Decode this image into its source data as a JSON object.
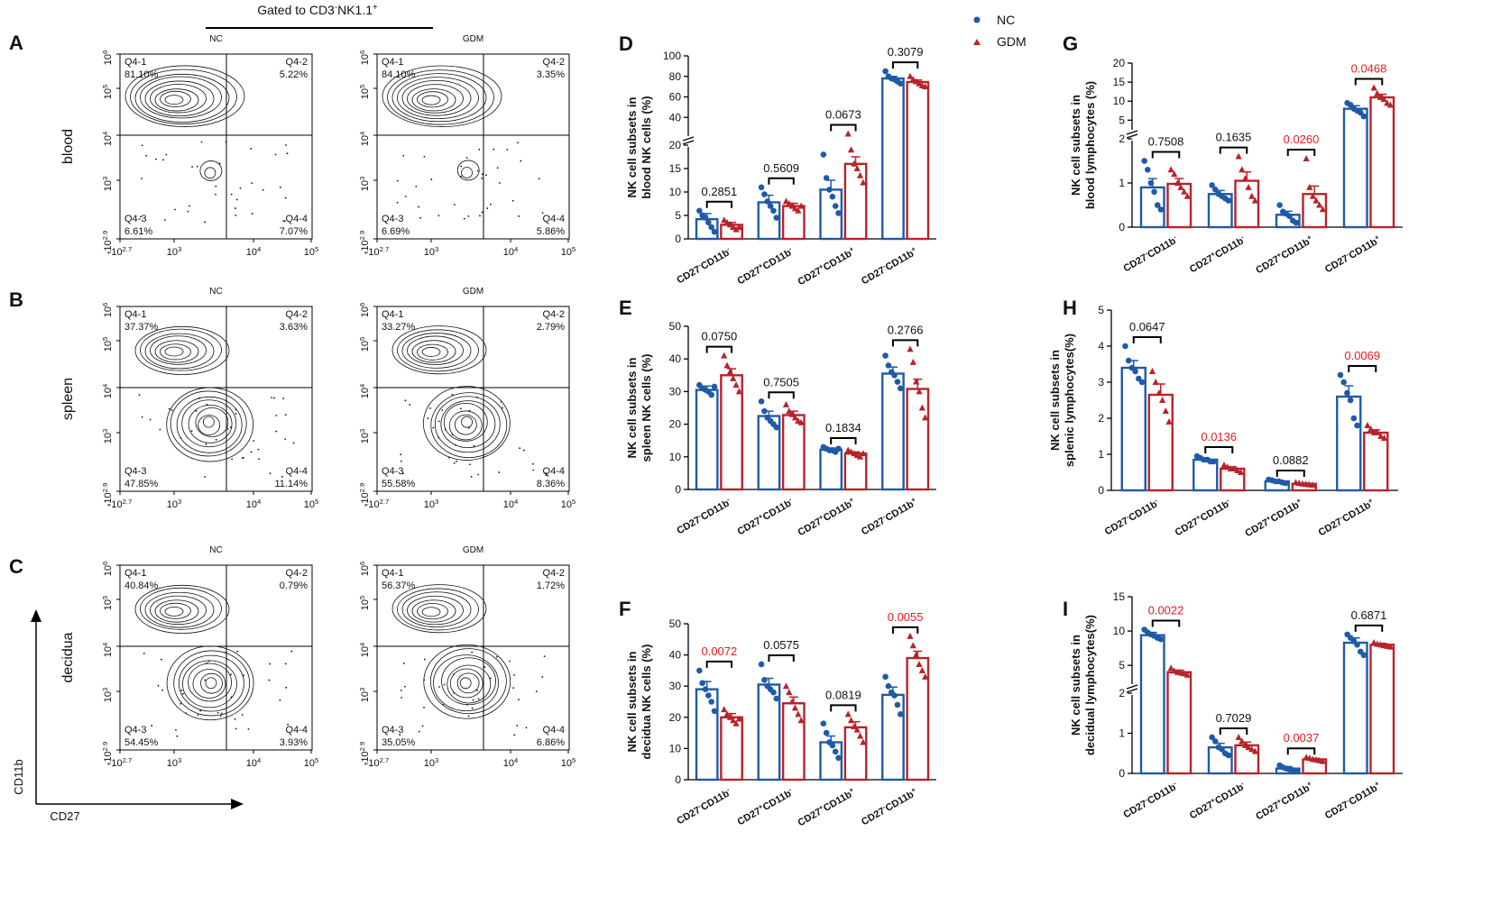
{
  "header": {
    "gate_label": "Gated to CD3",
    "gate_sup1": "-",
    "gate_label2": "NK1.1",
    "gate_sup2": "+"
  },
  "legend": {
    "nc": "NC",
    "gdm": "GDM"
  },
  "colors": {
    "nc": "#1f5aa8",
    "gdm": "#b8232a",
    "sig": "#e8191c",
    "axis": "#000000"
  },
  "axes": {
    "xlabel": "CD27",
    "ylabel": "CD11b"
  },
  "flow": {
    "x_ticks": [
      "-10",
      "10",
      "10",
      "10"
    ],
    "x_tick_exps": [
      "2.7",
      "3",
      "4",
      "5"
    ],
    "y_ticks": [
      "-10",
      "10",
      "10",
      "10",
      "10"
    ],
    "y_tick_exps": [
      "2.9",
      "3",
      "4",
      "5",
      "6"
    ],
    "rows": [
      {
        "letter": "A",
        "tissue": "blood",
        "panels": [
          {
            "group": "NC",
            "q1": "Q4-1",
            "q1v": "81.10%",
            "q2": "Q4-2",
            "q2v": "5.22%",
            "q3": "Q4-3",
            "q3v": "6.61%",
            "q4": "Q4-4",
            "q4v": "7.07%"
          },
          {
            "group": "GDM",
            "q1": "Q4-1",
            "q1v": "84.10%",
            "q2": "Q4-2",
            "q2v": "3.35%",
            "q3": "Q4-3",
            "q3v": "6.69%",
            "q4": "Q4-4",
            "q4v": "5.86%"
          }
        ]
      },
      {
        "letter": "B",
        "tissue": "spleen",
        "panels": [
          {
            "group": "NC",
            "q1": "Q4-1",
            "q1v": "37.37%",
            "q2": "Q4-2",
            "q2v": "3.63%",
            "q3": "Q4-3",
            "q3v": "47.85%",
            "q4": "Q4-4",
            "q4v": "11.14%"
          },
          {
            "group": "GDM",
            "q1": "Q4-1",
            "q1v": "33.27%",
            "q2": "Q4-2",
            "q2v": "2.79%",
            "q3": "Q4-3",
            "q3v": "55.58%",
            "q4": "Q4-4",
            "q4v": "8.36%"
          }
        ]
      },
      {
        "letter": "C",
        "tissue": "decidua",
        "panels": [
          {
            "group": "NC",
            "q1": "Q4-1",
            "q1v": "40.84%",
            "q2": "Q4-2",
            "q2v": "0.79%",
            "q3": "Q4-3",
            "q3v": "54.45%",
            "q4": "Q4-4",
            "q4v": "3.93%"
          },
          {
            "group": "GDM",
            "q1": "Q4-1",
            "q1v": "56.37%",
            "q2": "Q4-2",
            "q2v": "1.72%",
            "q3": "Q4-3",
            "q3v": "35.05%",
            "q4": "Q4-4",
            "q4v": "6.86%"
          }
        ]
      }
    ]
  },
  "chart_data": [
    {
      "id": "D",
      "type": "bar",
      "ylabel": [
        "NK cell subsets in",
        "blood NK cells (%)"
      ],
      "segments": [
        {
          "range": [
            0,
            20
          ],
          "ticks": [
            0,
            5,
            10,
            15,
            20
          ]
        },
        {
          "range": [
            20,
            100
          ],
          "ticks": [
            20,
            40,
            60,
            80,
            100
          ]
        }
      ],
      "groups": [
        {
          "label": "CD27",
          "s1": "-",
          "mid": "CD11b",
          "s2": "-",
          "nc": 4.2,
          "nc_err": 1.2,
          "gdm": 3.0,
          "gdm_err": 0.5,
          "nc_pts": [
            6.0,
            5.0,
            4.5,
            3.5,
            2.5,
            1.5
          ],
          "gdm_pts": [
            4.0,
            3.5,
            3.0,
            2.5,
            2.0,
            2.5
          ],
          "p": "0.2851",
          "sig": false
        },
        {
          "label": "CD27",
          "s1": "+",
          "mid": "CD11b",
          "s2": "-",
          "nc": 7.8,
          "nc_err": 1.5,
          "gdm": 7.0,
          "gdm_err": 0.6,
          "nc_pts": [
            11.0,
            9.5,
            8.0,
            7.0,
            6.0,
            4.5
          ],
          "gdm_pts": [
            8.0,
            7.5,
            7.0,
            6.5,
            6.0,
            7.0
          ],
          "p": "0.5609",
          "sig": false
        },
        {
          "label": "CD27",
          "s1": "+",
          "mid": "CD11b",
          "s2": "+",
          "nc": 10.5,
          "nc_err": 2.0,
          "gdm": 16.0,
          "gdm_err": 1.5,
          "nc_pts": [
            18.0,
            13.0,
            10.5,
            9.0,
            7.0,
            5.5
          ],
          "gdm_pts": [
            24.0,
            19.0,
            16.0,
            15.0,
            13.5,
            12.0
          ],
          "p": "0.0673",
          "sig": false
        },
        {
          "label": "CD27",
          "s1": "-",
          "mid": "CD11b",
          "s2": "+",
          "nc": 78.0,
          "nc_err": 2.0,
          "gdm": 74.5,
          "gdm_err": 2.0,
          "nc_pts": [
            85.0,
            80.0,
            78.0,
            77.0,
            75.0,
            73.0
          ],
          "gdm_pts": [
            80.0,
            77.0,
            75.0,
            73.0,
            71.0,
            70.0
          ],
          "p": "0.3079",
          "sig": false
        }
      ]
    },
    {
      "id": "E",
      "type": "bar",
      "ylabel": [
        "NK cell subsets in",
        "spleen NK cells (%)"
      ],
      "segments": [
        {
          "range": [
            0,
            50
          ],
          "ticks": [
            0,
            10,
            20,
            30,
            40,
            50
          ]
        }
      ],
      "groups": [
        {
          "label": "CD27",
          "s1": "-",
          "mid": "CD11b",
          "s2": "-",
          "nc": 30.5,
          "nc_err": 1.2,
          "gdm": 35.0,
          "gdm_err": 2.0,
          "nc_pts": [
            32.0,
            31.0,
            30.5,
            30.0,
            29.0,
            31.5
          ],
          "gdm_pts": [
            41.0,
            38.0,
            36.0,
            34.0,
            32.0,
            30.0
          ],
          "p": "0.0750",
          "sig": false
        },
        {
          "label": "CD27",
          "s1": "+",
          "mid": "CD11b",
          "s2": "-",
          "nc": 22.5,
          "nc_err": 1.5,
          "gdm": 22.8,
          "gdm_err": 1.2,
          "nc_pts": [
            27.0,
            24.0,
            22.0,
            21.0,
            20.0,
            19.0
          ],
          "gdm_pts": [
            26.0,
            24.0,
            23.0,
            22.0,
            21.0,
            20.5
          ],
          "p": "0.7505",
          "sig": false
        },
        {
          "label": "CD27",
          "s1": "+",
          "mid": "CD11b",
          "s2": "+",
          "nc": 12.2,
          "nc_err": 0.5,
          "gdm": 11.0,
          "gdm_err": 0.5,
          "nc_pts": [
            13.0,
            12.5,
            12.0,
            12.0,
            11.5,
            12.5
          ],
          "gdm_pts": [
            12.0,
            11.5,
            11.0,
            10.5,
            10.0,
            11.0
          ],
          "p": "0.1834",
          "sig": false
        },
        {
          "label": "CD27",
          "s1": "-",
          "mid": "CD11b",
          "s2": "+",
          "nc": 35.5,
          "nc_err": 2.0,
          "gdm": 30.8,
          "gdm_err": 3.0,
          "nc_pts": [
            41.0,
            38.0,
            36.0,
            35.0,
            33.0,
            31.0
          ],
          "gdm_pts": [
            43.0,
            39.0,
            33.0,
            30.0,
            25.0,
            22.0
          ],
          "p": "0.2766",
          "sig": false
        }
      ]
    },
    {
      "id": "F",
      "type": "bar",
      "ylabel": [
        "NK cell subsets in",
        "decidua NK cells (%)"
      ],
      "segments": [
        {
          "range": [
            0,
            50
          ],
          "ticks": [
            0,
            10,
            20,
            30,
            40,
            50
          ]
        }
      ],
      "groups": [
        {
          "label": "CD27",
          "s1": "-",
          "mid": "CD11b",
          "s2": "-",
          "nc": 29.0,
          "nc_err": 2.5,
          "gdm": 20.0,
          "gdm_err": 1.2,
          "nc_pts": [
            35.0,
            31.0,
            29.0,
            27.0,
            25.0,
            22.0
          ],
          "gdm_pts": [
            22.5,
            21.0,
            20.0,
            19.0,
            18.0,
            19.5
          ],
          "p": "0.0072",
          "sig": true
        },
        {
          "label": "CD27",
          "s1": "+",
          "mid": "CD11b",
          "s2": "-",
          "nc": 30.5,
          "nc_err": 2.0,
          "gdm": 24.5,
          "gdm_err": 2.0,
          "nc_pts": [
            37.0,
            32.0,
            30.0,
            29.0,
            28.0,
            26.0
          ],
          "gdm_pts": [
            30.0,
            28.0,
            25.0,
            23.0,
            21.0,
            19.0
          ],
          "p": "0.0575",
          "sig": false
        },
        {
          "label": "CD27",
          "s1": "+",
          "mid": "CD11b",
          "s2": "+",
          "nc": 12.0,
          "nc_err": 2.0,
          "gdm": 16.8,
          "gdm_err": 1.8,
          "nc_pts": [
            18.0,
            15.0,
            12.0,
            11.0,
            9.0,
            7.0
          ],
          "gdm_pts": [
            21.0,
            19.0,
            17.0,
            16.0,
            14.0,
            12.0
          ],
          "p": "0.0819",
          "sig": false
        },
        {
          "label": "CD27",
          "s1": "-",
          "mid": "CD11b",
          "s2": "+",
          "nc": 27.2,
          "nc_err": 2.5,
          "gdm": 39.0,
          "gdm_err": 2.2,
          "nc_pts": [
            33.0,
            30.0,
            28.0,
            27.0,
            24.0,
            21.0
          ],
          "gdm_pts": [
            46.0,
            43.0,
            40.0,
            37.0,
            35.0,
            33.0
          ],
          "p": "0.0055",
          "sig": true
        }
      ]
    },
    {
      "id": "G",
      "type": "bar",
      "ylabel": [
        "NK cell subsets in",
        "blood lymphocytes (%)"
      ],
      "segments": [
        {
          "range": [
            0,
            2
          ],
          "ticks": [
            0,
            1,
            2
          ]
        },
        {
          "range": [
            2,
            20
          ],
          "ticks": [
            5,
            10,
            15,
            20
          ]
        }
      ],
      "groups": [
        {
          "label": "CD27",
          "s1": "-",
          "mid": "CD11b",
          "s2": "-",
          "nc": 0.9,
          "nc_err": 0.2,
          "gdm": 0.98,
          "gdm_err": 0.12,
          "nc_pts": [
            1.5,
            1.3,
            1.0,
            0.8,
            0.5,
            0.4
          ],
          "gdm_pts": [
            1.3,
            1.2,
            1.0,
            0.9,
            0.8,
            0.7
          ],
          "p": "0.7508",
          "sig": false
        },
        {
          "label": "CD27",
          "s1": "+",
          "mid": "CD11b",
          "s2": "-",
          "nc": 0.75,
          "nc_err": 0.08,
          "gdm": 1.05,
          "gdm_err": 0.2,
          "nc_pts": [
            0.95,
            0.85,
            0.75,
            0.7,
            0.65,
            0.6
          ],
          "gdm_pts": [
            1.6,
            1.3,
            1.1,
            0.9,
            0.7,
            0.6
          ],
          "p": "0.1635",
          "sig": false
        },
        {
          "label": "CD27",
          "s1": "+",
          "mid": "CD11b",
          "s2": "+",
          "nc": 0.28,
          "nc_err": 0.08,
          "gdm": 0.75,
          "gdm_err": 0.18,
          "nc_pts": [
            0.5,
            0.35,
            0.3,
            0.25,
            0.15,
            0.1
          ],
          "gdm_pts": [
            1.55,
            0.9,
            0.7,
            0.6,
            0.5,
            0.4
          ],
          "p": "0.0260",
          "sig": true
        },
        {
          "label": "CD27",
          "s1": "-",
          "mid": "CD11b",
          "s2": "+",
          "nc": 8.0,
          "nc_err": 0.8,
          "gdm": 11.0,
          "gdm_err": 0.8,
          "nc_pts": [
            9.5,
            9.0,
            8.0,
            7.5,
            7.0,
            6.0
          ],
          "gdm_pts": [
            13.5,
            12.0,
            11.0,
            10.5,
            9.5,
            9.0
          ],
          "p": "0.0468",
          "sig": true
        }
      ]
    },
    {
      "id": "H",
      "type": "bar",
      "ylabel": [
        "NK cell subsets in",
        "splenic lymphocytes(%)"
      ],
      "segments": [
        {
          "range": [
            0,
            5
          ],
          "ticks": [
            0,
            1,
            2,
            3,
            4,
            5
          ]
        }
      ],
      "groups": [
        {
          "label": "CD27",
          "s1": "-",
          "mid": "CD11b",
          "s2": "-",
          "nc": 3.4,
          "nc_err": 0.2,
          "gdm": 2.65,
          "gdm_err": 0.3,
          "nc_pts": [
            4.0,
            3.6,
            3.4,
            3.3,
            3.1,
            3.0
          ],
          "gdm_pts": [
            3.3,
            3.0,
            2.7,
            2.5,
            2.2,
            1.9
          ],
          "p": "0.0647",
          "sig": false
        },
        {
          "label": "CD27",
          "s1": "+",
          "mid": "CD11b",
          "s2": "-",
          "nc": 0.85,
          "nc_err": 0.05,
          "gdm": 0.6,
          "gdm_err": 0.05,
          "nc_pts": [
            0.95,
            0.9,
            0.85,
            0.85,
            0.8,
            0.8
          ],
          "gdm_pts": [
            0.7,
            0.65,
            0.6,
            0.6,
            0.55,
            0.5
          ],
          "p": "0.0136",
          "sig": true
        },
        {
          "label": "CD27",
          "s1": "+",
          "mid": "CD11b",
          "s2": "+",
          "nc": 0.25,
          "nc_err": 0.02,
          "gdm": 0.18,
          "gdm_err": 0.02,
          "nc_pts": [
            0.3,
            0.28,
            0.25,
            0.25,
            0.22,
            0.2
          ],
          "gdm_pts": [
            0.22,
            0.2,
            0.18,
            0.17,
            0.16,
            0.15
          ],
          "p": "0.0882",
          "sig": false
        },
        {
          "label": "CD27",
          "s1": "-",
          "mid": "CD11b",
          "s2": "+",
          "nc": 2.6,
          "nc_err": 0.3,
          "gdm": 1.6,
          "gdm_err": 0.08,
          "nc_pts": [
            3.2,
            3.0,
            2.7,
            2.5,
            2.0,
            1.8
          ],
          "gdm_pts": [
            1.8,
            1.7,
            1.6,
            1.6,
            1.5,
            1.45
          ],
          "p": "0.0069",
          "sig": true
        }
      ]
    },
    {
      "id": "I",
      "type": "bar",
      "ylabel": [
        "NK cell subsets in",
        "decidual lymphocytes(%)"
      ],
      "segments": [
        {
          "range": [
            0,
            2
          ],
          "ticks": [
            0,
            1,
            2
          ]
        },
        {
          "range": [
            2,
            15
          ],
          "ticks": [
            5,
            10,
            15
          ]
        }
      ],
      "groups": [
        {
          "label": "CD27",
          "s1": "-",
          "mid": "CD11b",
          "s2": "-",
          "nc": 9.4,
          "nc_err": 0.4,
          "gdm": 4.0,
          "gdm_err": 0.3,
          "nc_pts": [
            10.2,
            9.8,
            9.5,
            9.3,
            9.0,
            8.8
          ],
          "gdm_pts": [
            4.6,
            4.2,
            4.0,
            3.9,
            3.8,
            3.6
          ],
          "p": "0.0022",
          "sig": true
        },
        {
          "label": "CD27",
          "s1": "+",
          "mid": "CD11b",
          "s2": "-",
          "nc": 0.65,
          "nc_err": 0.1,
          "gdm": 0.7,
          "gdm_err": 0.08,
          "nc_pts": [
            0.9,
            0.8,
            0.65,
            0.6,
            0.5,
            0.45
          ],
          "gdm_pts": [
            0.9,
            0.8,
            0.7,
            0.65,
            0.6,
            0.55
          ],
          "p": "0.7029",
          "sig": false
        },
        {
          "label": "CD27",
          "s1": "+",
          "mid": "CD11b",
          "s2": "+",
          "nc": 0.12,
          "nc_err": 0.05,
          "gdm": 0.35,
          "gdm_err": 0.02,
          "nc_pts": [
            0.2,
            0.15,
            0.12,
            0.1,
            0.08,
            0.06
          ],
          "gdm_pts": [
            0.4,
            0.38,
            0.35,
            0.34,
            0.32,
            0.3
          ],
          "p": "0.0037",
          "sig": true
        },
        {
          "label": "CD27",
          "s1": "-",
          "mid": "CD11b",
          "s2": "+",
          "nc": 8.3,
          "nc_err": 0.7,
          "gdm": 8.0,
          "gdm_err": 0.2,
          "nc_pts": [
            9.5,
            9.0,
            8.5,
            8.0,
            7.0,
            6.5
          ],
          "gdm_pts": [
            8.3,
            8.1,
            8.0,
            7.9,
            7.8,
            7.7
          ],
          "p": "0.6871",
          "sig": false
        }
      ]
    }
  ]
}
